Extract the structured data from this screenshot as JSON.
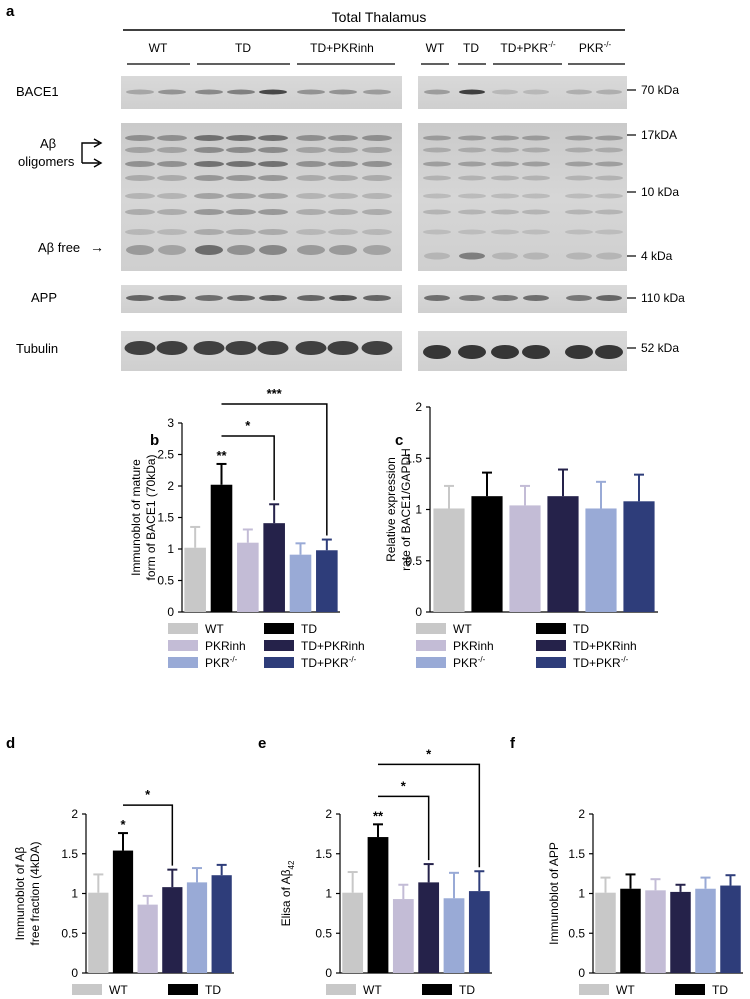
{
  "panel_letters": [
    "a",
    "b",
    "c",
    "d",
    "e",
    "f"
  ],
  "blot": {
    "header": "Total Thalamus",
    "left_groups": [
      "WT",
      "TD",
      "TD+PKRinh"
    ],
    "right_groups": [
      {
        "base": "WT",
        "sup": ""
      },
      {
        "base": "TD",
        "sup": ""
      },
      {
        "base": "TD+PKR",
        "sup": "-/-"
      },
      {
        "base": "PKR",
        "sup": "-/-"
      }
    ],
    "row_labels": [
      "BACE1",
      "APP",
      "Tubulin"
    ],
    "abeta_label_1": "Aβ",
    "abeta_label_2": "oligomers",
    "abeta_free_label": "Aβ free",
    "arrow_glyph": "→",
    "markers": [
      "70 kDa",
      "17kDA",
      "10 kDa",
      "4 kDa",
      "110 kDa",
      "52 kDa"
    ]
  },
  "legend": [
    {
      "base": "WT",
      "sup": "",
      "color": "#c8c8c8"
    },
    {
      "base": "TD",
      "sup": "",
      "color": "#000000"
    },
    {
      "base": "PKRinh",
      "sup": "",
      "color": "#c3bcd6"
    },
    {
      "base": "TD+PKRinh",
      "sup": "",
      "color": "#25224a"
    },
    {
      "base": "PKR",
      "sup": "-/-",
      "color": "#99aad6"
    },
    {
      "base": "TD+PKR",
      "sup": "-/-",
      "color": "#2e3d7a"
    }
  ],
  "chart_data": [
    {
      "panel": "b",
      "type": "bar",
      "ylabel": [
        "Immunoblot of mature",
        "form of BACE1 (70kDa)"
      ],
      "ylim": [
        0,
        3
      ],
      "yticks": [
        "0",
        "0.5",
        "1",
        "1.5",
        "2",
        "2.5",
        "3"
      ],
      "categories": [
        "WT",
        "TD",
        "PKRinh",
        "TD+PKRinh",
        "PKR-/-",
        "TD+PKR-/-"
      ],
      "values": [
        1.02,
        2.02,
        1.1,
        1.41,
        0.91,
        0.98
      ],
      "errors": [
        0.33,
        0.33,
        0.21,
        0.3,
        0.18,
        0.17
      ],
      "stars": [
        "",
        "**",
        "",
        "",
        "",
        ""
      ],
      "brackets": [
        {
          "from": 1,
          "to": 3,
          "label": "*"
        },
        {
          "from": 1,
          "to": 5,
          "label": "***"
        }
      ]
    },
    {
      "panel": "c",
      "type": "bar",
      "ylabel": [
        "Relative expression",
        "rate of BACE1/GAPDH"
      ],
      "ylim": [
        0,
        2
      ],
      "yticks": [
        "0",
        "0.5",
        "1",
        "1.5",
        "2"
      ],
      "categories": [
        "WT",
        "TD",
        "PKRinh",
        "TD+PKRinh",
        "PKR-/-",
        "TD+PKR-/-"
      ],
      "values": [
        1.01,
        1.13,
        1.04,
        1.13,
        1.01,
        1.08
      ],
      "errors": [
        0.22,
        0.23,
        0.19,
        0.26,
        0.26,
        0.26
      ],
      "stars": [
        "",
        "",
        "",
        "",
        "",
        ""
      ],
      "brackets": []
    },
    {
      "panel": "d",
      "type": "bar",
      "ylabel": [
        "Immunoblot of Aβ",
        "free fraction (4kDA)"
      ],
      "ylim": [
        0,
        2
      ],
      "yticks": [
        "0",
        "0.5",
        "1",
        "1.5",
        "2"
      ],
      "categories": [
        "WT",
        "TD",
        "PKRinh",
        "TD+PKRinh",
        "PKR-/-",
        "TD+PKR-/-"
      ],
      "values": [
        1.01,
        1.54,
        0.86,
        1.08,
        1.14,
        1.23
      ],
      "errors": [
        0.23,
        0.22,
        0.11,
        0.22,
        0.18,
        0.13
      ],
      "stars": [
        "",
        "*",
        "",
        "",
        "",
        ""
      ],
      "brackets": [
        {
          "from": 1,
          "to": 3,
          "label": "*"
        }
      ]
    },
    {
      "panel": "e",
      "type": "bar",
      "ylabel": [
        "Elisa of Aβ",
        "42"
      ],
      "ylim": [
        0,
        2
      ],
      "yticks": [
        "0",
        "0.5",
        "1",
        "1.5",
        "2"
      ],
      "categories": [
        "WT",
        "TD",
        "PKRinh",
        "TD+PKRinh",
        "PKR-/-",
        "TD+PKR-/-"
      ],
      "values": [
        1.01,
        1.71,
        0.93,
        1.14,
        0.94,
        1.03
      ],
      "errors": [
        0.26,
        0.16,
        0.18,
        0.23,
        0.32,
        0.25
      ],
      "stars": [
        "",
        "**",
        "",
        "",
        "",
        ""
      ],
      "brackets": [
        {
          "from": 1,
          "to": 3,
          "label": "*"
        },
        {
          "from": 1,
          "to": 5,
          "label": "*"
        }
      ]
    },
    {
      "panel": "f",
      "type": "bar",
      "ylabel": [
        "Immunoblot of APP"
      ],
      "ylim": [
        0,
        2
      ],
      "yticks": [
        "0",
        "0.5",
        "1",
        "1.5",
        "2"
      ],
      "categories": [
        "WT",
        "TD",
        "PKRinh",
        "TD+PKRinh",
        "PKR-/-",
        "TD+PKR-/-"
      ],
      "values": [
        1.01,
        1.06,
        1.04,
        1.02,
        1.06,
        1.1
      ],
      "errors": [
        0.19,
        0.18,
        0.14,
        0.09,
        0.14,
        0.13
      ],
      "stars": [
        "",
        "",
        "",
        "",
        "",
        ""
      ],
      "brackets": []
    }
  ]
}
